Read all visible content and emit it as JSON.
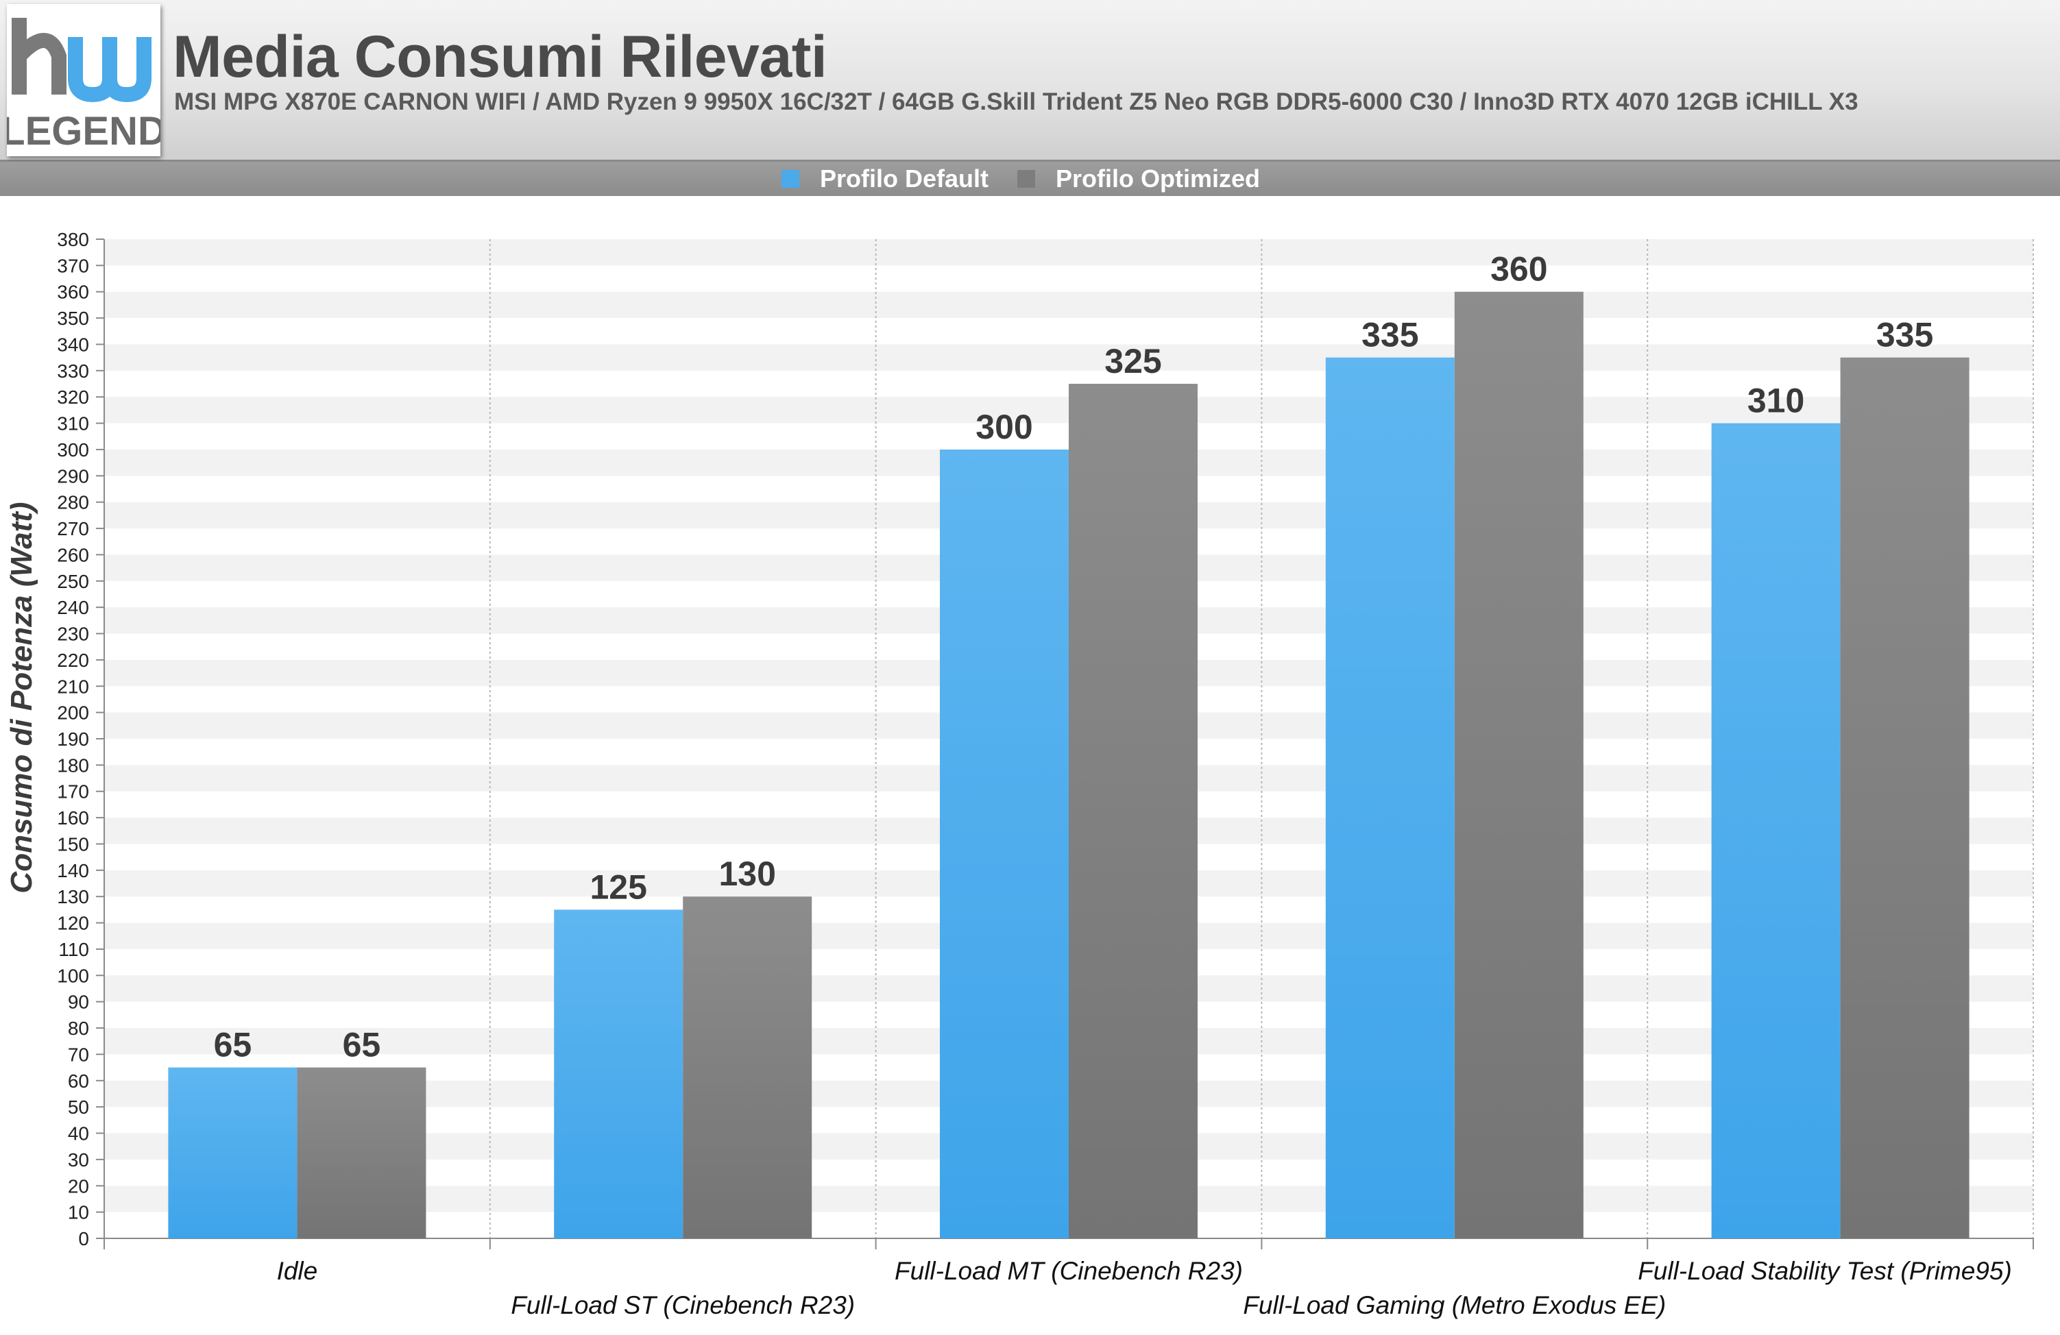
{
  "header": {
    "logo_text_top": "hw",
    "logo_text_bottom": "LEGEND",
    "title": "Media Consumi Rilevati",
    "subtitle": "MSI MPG X870E CARNON WIFI / AMD Ryzen 9 9950X 16C/32T / 64GB G.Skill Trident Z5 Neo RGB DDR5-6000 C30 / Inno3D RTX 4070 12GB iCHILL X3"
  },
  "chart_data": {
    "type": "bar",
    "title": "Media Consumi Rilevati",
    "ylabel": "Consumo di Potenza (Watt)",
    "xlabel": "",
    "ylim": [
      0,
      380
    ],
    "ytick_step": 10,
    "grid": "alternating horizontal bands, dotted vertical category separators",
    "legend_position": "top-center",
    "categories": [
      "Idle",
      "Full-Load ST (Cinebench R23)",
      "Full-Load MT (Cinebench R23)",
      "Full-Load Gaming (Metro Exodus EE)",
      "Full-Load Stability Test (Prime95)"
    ],
    "series": [
      {
        "name": "Profilo Default",
        "color": "#4aaaea",
        "values": [
          65,
          125,
          300,
          335,
          310
        ]
      },
      {
        "name": "Profilo Optimized",
        "color": "#7d7d7d",
        "values": [
          65,
          130,
          325,
          360,
          335
        ]
      }
    ],
    "data_labels": true
  }
}
